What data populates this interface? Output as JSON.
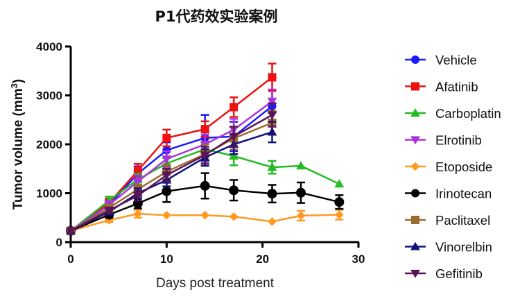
{
  "chart_data": {
    "type": "line",
    "title": "P1代药效实验案例",
    "xlabel": "Days post treatment",
    "ylabel": "Tumor volume (mm",
    "ylabel_superscript": "3",
    "ylabel_close": ")",
    "xlim": [
      0,
      30
    ],
    "ylim": [
      0,
      4000
    ],
    "xticks": [
      0,
      10,
      20,
      30
    ],
    "yticks": [
      0,
      1000,
      2000,
      3000,
      4000
    ],
    "legend_position": "right",
    "series": [
      {
        "name": "Vehicle",
        "color": "#1a1aff",
        "marker": "circle",
        "x": [
          0,
          4,
          7,
          10,
          14,
          17,
          21
        ],
        "y": [
          230,
          760,
          1400,
          1880,
          2130,
          2160,
          2780
        ],
        "err": [
          40,
          90,
          150,
          160,
          470,
          300,
          330
        ]
      },
      {
        "name": "Afatinib",
        "color": "#ee1111",
        "marker": "square",
        "x": [
          0,
          4,
          7,
          10,
          14,
          17,
          21
        ],
        "y": [
          230,
          800,
          1460,
          2130,
          2310,
          2760,
          3370
        ],
        "err": [
          40,
          90,
          140,
          170,
          160,
          200,
          280
        ]
      },
      {
        "name": "Carboplatin",
        "color": "#22bb22",
        "marker": "triangle-up",
        "x": [
          0,
          4,
          7,
          10,
          14,
          17,
          21,
          24,
          28
        ],
        "y": [
          230,
          850,
          1280,
          1610,
          1900,
          1760,
          1530,
          1560,
          1190
        ],
        "err": [
          40,
          80,
          120,
          110,
          140,
          190,
          130,
          0,
          0
        ]
      },
      {
        "name": "Elrotinib",
        "color": "#aa33dd",
        "marker": "triangle-down",
        "x": [
          0,
          4,
          7,
          10,
          14,
          17,
          21
        ],
        "y": [
          230,
          760,
          1240,
          1700,
          2000,
          2300,
          2880
        ],
        "err": [
          40,
          80,
          120,
          160,
          200,
          220,
          240
        ]
      },
      {
        "name": "Etoposide",
        "color": "#ff9922",
        "marker": "diamond",
        "x": [
          0,
          4,
          7,
          10,
          14,
          17,
          21,
          24,
          28
        ],
        "y": [
          230,
          450,
          580,
          550,
          550,
          520,
          420,
          540,
          560
        ],
        "err": [
          40,
          40,
          80,
          0,
          0,
          0,
          0,
          100,
          100
        ]
      },
      {
        "name": "Irinotecan",
        "color": "#000000",
        "marker": "circle",
        "x": [
          0,
          4,
          7,
          10,
          14,
          17,
          21,
          24,
          28
        ],
        "y": [
          230,
          560,
          790,
          1040,
          1150,
          1060,
          990,
          1010,
          820
        ],
        "err": [
          40,
          60,
          100,
          220,
          260,
          210,
          180,
          210,
          140
        ]
      },
      {
        "name": "Paclitaxel",
        "color": "#9c6b2f",
        "marker": "square",
        "x": [
          0,
          4,
          7,
          10,
          14,
          17,
          21
        ],
        "y": [
          230,
          700,
          1080,
          1440,
          1800,
          2120,
          2440
        ],
        "err": [
          40,
          60,
          100,
          150,
          200,
          230,
          240
        ]
      },
      {
        "name": "Vinorelbin",
        "color": "#11117a",
        "marker": "triangle-up",
        "x": [
          0,
          4,
          7,
          10,
          14,
          17,
          21
        ],
        "y": [
          230,
          620,
          1000,
          1270,
          1730,
          2000,
          2250
        ],
        "err": [
          40,
          60,
          100,
          130,
          170,
          200,
          210
        ]
      },
      {
        "name": "Gefitinib",
        "color": "#5a1458",
        "marker": "triangle-down",
        "x": [
          0,
          4,
          7,
          10,
          14,
          17,
          21
        ],
        "y": [
          230,
          650,
          950,
          1370,
          1780,
          2160,
          2600
        ],
        "err": [
          40,
          60,
          100,
          130,
          170,
          200,
          240
        ]
      }
    ]
  }
}
